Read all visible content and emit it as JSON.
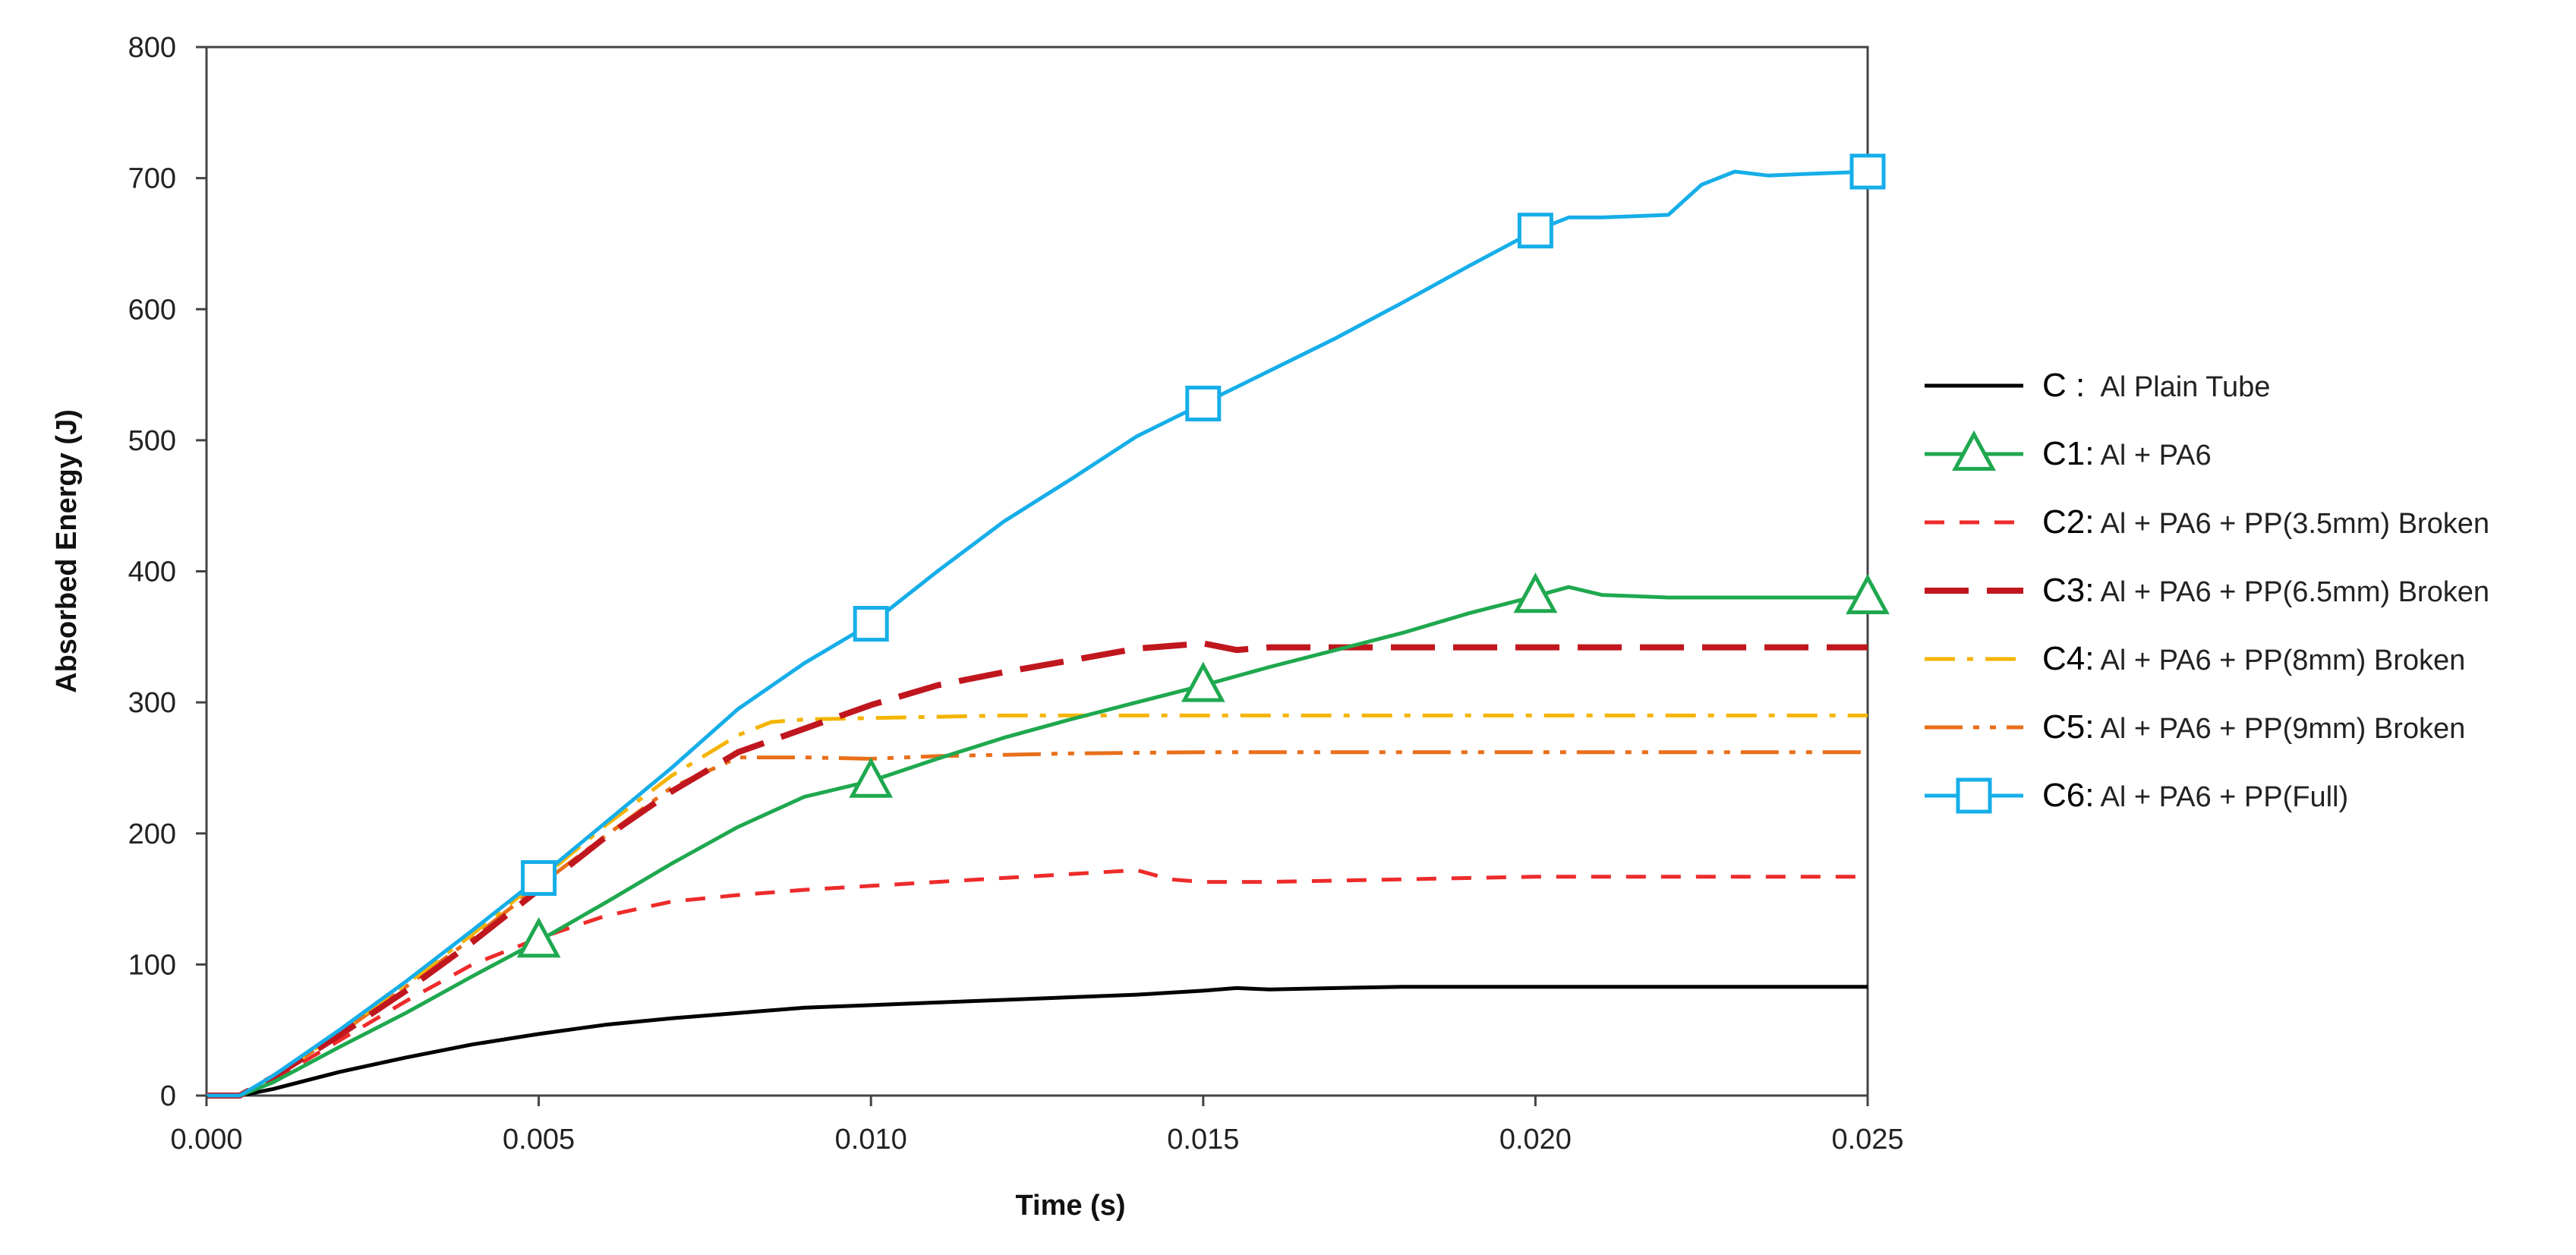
{
  "chart_data": {
    "type": "line",
    "title": "",
    "xlabel": "Time (s)",
    "ylabel": "Absorbed Energy (J)",
    "xlim": [
      0,
      0.025
    ],
    "ylim": [
      0,
      800
    ],
    "x_ticks": [
      0,
      0.005,
      0.01,
      0.015,
      0.02,
      0.025
    ],
    "x_tick_labels": [
      "0.000",
      "0.005",
      "0.010",
      "0.015",
      "0.020",
      "0.025"
    ],
    "y_ticks": [
      0,
      100,
      200,
      300,
      400,
      500,
      600,
      700,
      800
    ],
    "y_tick_labels": [
      "0",
      "100",
      "200",
      "300",
      "400",
      "500",
      "600",
      "700",
      "800"
    ],
    "grid": false,
    "legend_position": "right",
    "series": [
      {
        "code": "C",
        "desc": "Al Plain Tube",
        "color": "#000000",
        "dash": "solid",
        "marker": "none",
        "points": [
          [
            0,
            0
          ],
          [
            0.0005,
            0
          ],
          [
            0.001,
            5
          ],
          [
            0.002,
            18
          ],
          [
            0.003,
            29
          ],
          [
            0.004,
            39
          ],
          [
            0.005,
            47
          ],
          [
            0.006,
            54
          ],
          [
            0.007,
            59
          ],
          [
            0.008,
            63
          ],
          [
            0.009,
            67
          ],
          [
            0.01,
            69
          ],
          [
            0.011,
            71
          ],
          [
            0.012,
            73
          ],
          [
            0.013,
            75
          ],
          [
            0.014,
            77
          ],
          [
            0.015,
            80
          ],
          [
            0.0155,
            82
          ],
          [
            0.016,
            81
          ],
          [
            0.017,
            82
          ],
          [
            0.018,
            83
          ],
          [
            0.02,
            83
          ],
          [
            0.022,
            83
          ],
          [
            0.025,
            83
          ]
        ],
        "marker_x": []
      },
      {
        "code": "C1",
        "desc": "Al + PA6",
        "color": "#1fa84f",
        "dash": "solid",
        "marker": "triangle",
        "points": [
          [
            0,
            0
          ],
          [
            0.0005,
            0
          ],
          [
            0.001,
            10
          ],
          [
            0.002,
            37
          ],
          [
            0.003,
            63
          ],
          [
            0.004,
            91
          ],
          [
            0.005,
            118
          ],
          [
            0.006,
            147
          ],
          [
            0.007,
            177
          ],
          [
            0.008,
            205
          ],
          [
            0.009,
            228
          ],
          [
            0.01,
            240
          ],
          [
            0.011,
            257
          ],
          [
            0.012,
            273
          ],
          [
            0.013,
            287
          ],
          [
            0.014,
            300
          ],
          [
            0.015,
            313
          ],
          [
            0.016,
            327
          ],
          [
            0.017,
            340
          ],
          [
            0.018,
            353
          ],
          [
            0.019,
            368
          ],
          [
            0.02,
            381
          ],
          [
            0.0205,
            388
          ],
          [
            0.021,
            382
          ],
          [
            0.022,
            380
          ],
          [
            0.025,
            380
          ]
        ],
        "marker_x": [
          0.005,
          0.01,
          0.015,
          0.02,
          0.025
        ]
      },
      {
        "code": "C2",
        "desc": "Al + PA6 + PP(3.5mm) Broken",
        "color": "#ee2b2b",
        "dash": "short",
        "marker": "none",
        "points": [
          [
            0,
            0
          ],
          [
            0.0005,
            0
          ],
          [
            0.001,
            12
          ],
          [
            0.002,
            42
          ],
          [
            0.003,
            72
          ],
          [
            0.004,
            100
          ],
          [
            0.005,
            120
          ],
          [
            0.006,
            137
          ],
          [
            0.007,
            148
          ],
          [
            0.008,
            153
          ],
          [
            0.009,
            157
          ],
          [
            0.01,
            160
          ],
          [
            0.011,
            163
          ],
          [
            0.012,
            166
          ],
          [
            0.013,
            169
          ],
          [
            0.014,
            172
          ],
          [
            0.0145,
            165
          ],
          [
            0.015,
            163
          ],
          [
            0.016,
            163
          ],
          [
            0.018,
            165
          ],
          [
            0.02,
            167
          ],
          [
            0.022,
            167
          ],
          [
            0.025,
            167
          ]
        ],
        "marker_x": []
      },
      {
        "code": "C3",
        "desc": "Al + PA6 + PP(6.5mm) Broken",
        "color": "#c0161e",
        "dash": "long",
        "marker": "none",
        "points": [
          [
            0,
            0
          ],
          [
            0.0005,
            0
          ],
          [
            0.001,
            14
          ],
          [
            0.002,
            46
          ],
          [
            0.003,
            80
          ],
          [
            0.004,
            117
          ],
          [
            0.005,
            157
          ],
          [
            0.006,
            197
          ],
          [
            0.007,
            232
          ],
          [
            0.008,
            262
          ],
          [
            0.009,
            280
          ],
          [
            0.01,
            298
          ],
          [
            0.011,
            313
          ],
          [
            0.012,
            323
          ],
          [
            0.013,
            332
          ],
          [
            0.014,
            341
          ],
          [
            0.015,
            345
          ],
          [
            0.0155,
            340
          ],
          [
            0.016,
            342
          ],
          [
            0.018,
            342
          ],
          [
            0.02,
            342
          ],
          [
            0.022,
            342
          ],
          [
            0.025,
            342
          ]
        ],
        "marker_x": []
      },
      {
        "code": "C4",
        "desc": "Al + PA6 + PP(8mm) Broken",
        "color": "#f4b400",
        "dash": "dashdot",
        "marker": "none",
        "points": [
          [
            0,
            0
          ],
          [
            0.0005,
            0
          ],
          [
            0.001,
            14
          ],
          [
            0.002,
            48
          ],
          [
            0.003,
            85
          ],
          [
            0.004,
            123
          ],
          [
            0.005,
            164
          ],
          [
            0.006,
            206
          ],
          [
            0.007,
            244
          ],
          [
            0.008,
            275
          ],
          [
            0.0085,
            285
          ],
          [
            0.009,
            287
          ],
          [
            0.01,
            288
          ],
          [
            0.011,
            289
          ],
          [
            0.012,
            290
          ],
          [
            0.013,
            290
          ],
          [
            0.015,
            290
          ],
          [
            0.02,
            290
          ],
          [
            0.025,
            290
          ]
        ],
        "marker_x": []
      },
      {
        "code": "C5",
        "desc": "Al + PA6 + PP(9mm) Broken",
        "color": "#e86f1a",
        "dash": "dashdotdot",
        "marker": "none",
        "points": [
          [
            0,
            0
          ],
          [
            0.0005,
            0
          ],
          [
            0.001,
            14
          ],
          [
            0.002,
            47
          ],
          [
            0.003,
            83
          ],
          [
            0.004,
            120
          ],
          [
            0.005,
            160
          ],
          [
            0.006,
            198
          ],
          [
            0.007,
            235
          ],
          [
            0.008,
            258
          ],
          [
            0.009,
            258
          ],
          [
            0.01,
            257
          ],
          [
            0.011,
            259
          ],
          [
            0.012,
            260
          ],
          [
            0.013,
            261
          ],
          [
            0.015,
            262
          ],
          [
            0.02,
            262
          ],
          [
            0.025,
            262
          ]
        ],
        "marker_x": []
      },
      {
        "code": "C6",
        "desc": "Al + PA6 + PP(Full)",
        "color": "#16aee8",
        "dash": "solid",
        "marker": "square",
        "points": [
          [
            0,
            0
          ],
          [
            0.0005,
            0
          ],
          [
            0.001,
            15
          ],
          [
            0.002,
            50
          ],
          [
            0.003,
            87
          ],
          [
            0.004,
            126
          ],
          [
            0.005,
            166
          ],
          [
            0.006,
            208
          ],
          [
            0.007,
            250
          ],
          [
            0.008,
            295
          ],
          [
            0.009,
            330
          ],
          [
            0.01,
            360
          ],
          [
            0.011,
            400
          ],
          [
            0.012,
            438
          ],
          [
            0.013,
            470
          ],
          [
            0.014,
            503
          ],
          [
            0.015,
            528
          ],
          [
            0.016,
            553
          ],
          [
            0.017,
            578
          ],
          [
            0.018,
            605
          ],
          [
            0.019,
            633
          ],
          [
            0.02,
            660
          ],
          [
            0.0205,
            670
          ],
          [
            0.021,
            670
          ],
          [
            0.022,
            672
          ],
          [
            0.0225,
            695
          ],
          [
            0.023,
            705
          ],
          [
            0.0235,
            702
          ],
          [
            0.024,
            703
          ],
          [
            0.025,
            705
          ]
        ],
        "marker_x": [
          0.005,
          0.01,
          0.015,
          0.02,
          0.025
        ]
      }
    ]
  }
}
